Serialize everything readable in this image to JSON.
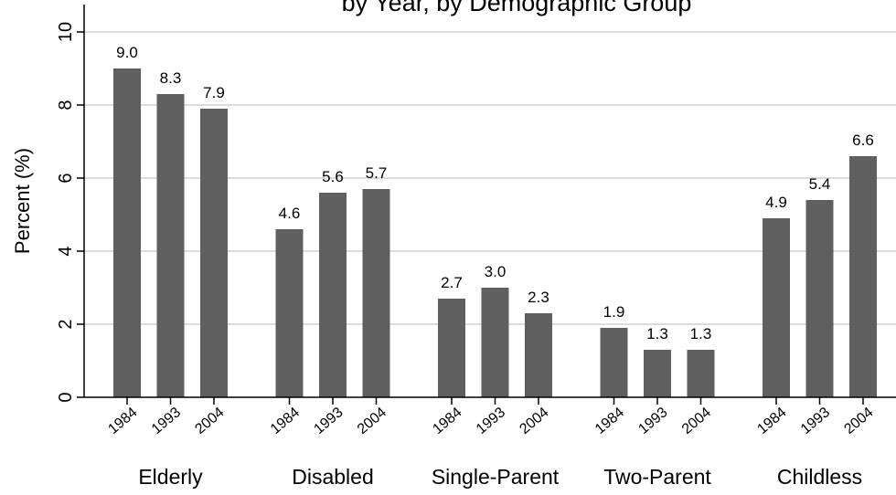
{
  "chart_data": {
    "type": "bar",
    "title": "by Year, by Demographic Group",
    "ylabel": "Percent (%)",
    "xlabel": "",
    "ylim": [
      0,
      10
    ],
    "yticks": [
      "0",
      "2",
      "4",
      "6",
      "8",
      "10"
    ],
    "years": [
      "1984",
      "1993",
      "2004"
    ],
    "groups": [
      {
        "name": "Elderly",
        "values": [
          9.0,
          8.3,
          7.9
        ],
        "labels": [
          "9.0",
          "8.3",
          "7.9"
        ]
      },
      {
        "name": "Disabled",
        "values": [
          4.6,
          5.6,
          5.7
        ],
        "labels": [
          "4.6",
          "5.6",
          "5.7"
        ]
      },
      {
        "name": "Single-Parent",
        "values": [
          2.7,
          3.0,
          2.3
        ],
        "labels": [
          "2.7",
          "3.0",
          "2.3"
        ]
      },
      {
        "name": "Two-Parent",
        "values": [
          1.9,
          1.3,
          1.3
        ],
        "labels": [
          "1.9",
          "1.3",
          "1.3"
        ]
      },
      {
        "name": "Childless",
        "values": [
          4.9,
          5.4,
          6.6
        ],
        "labels": [
          "4.9",
          "5.4",
          "6.6"
        ]
      }
    ],
    "grid": true,
    "colors": {
      "bar": "#5f5f5f",
      "grid": "#dcdcdc",
      "axis": "#000000",
      "background": "#ffffff"
    }
  }
}
